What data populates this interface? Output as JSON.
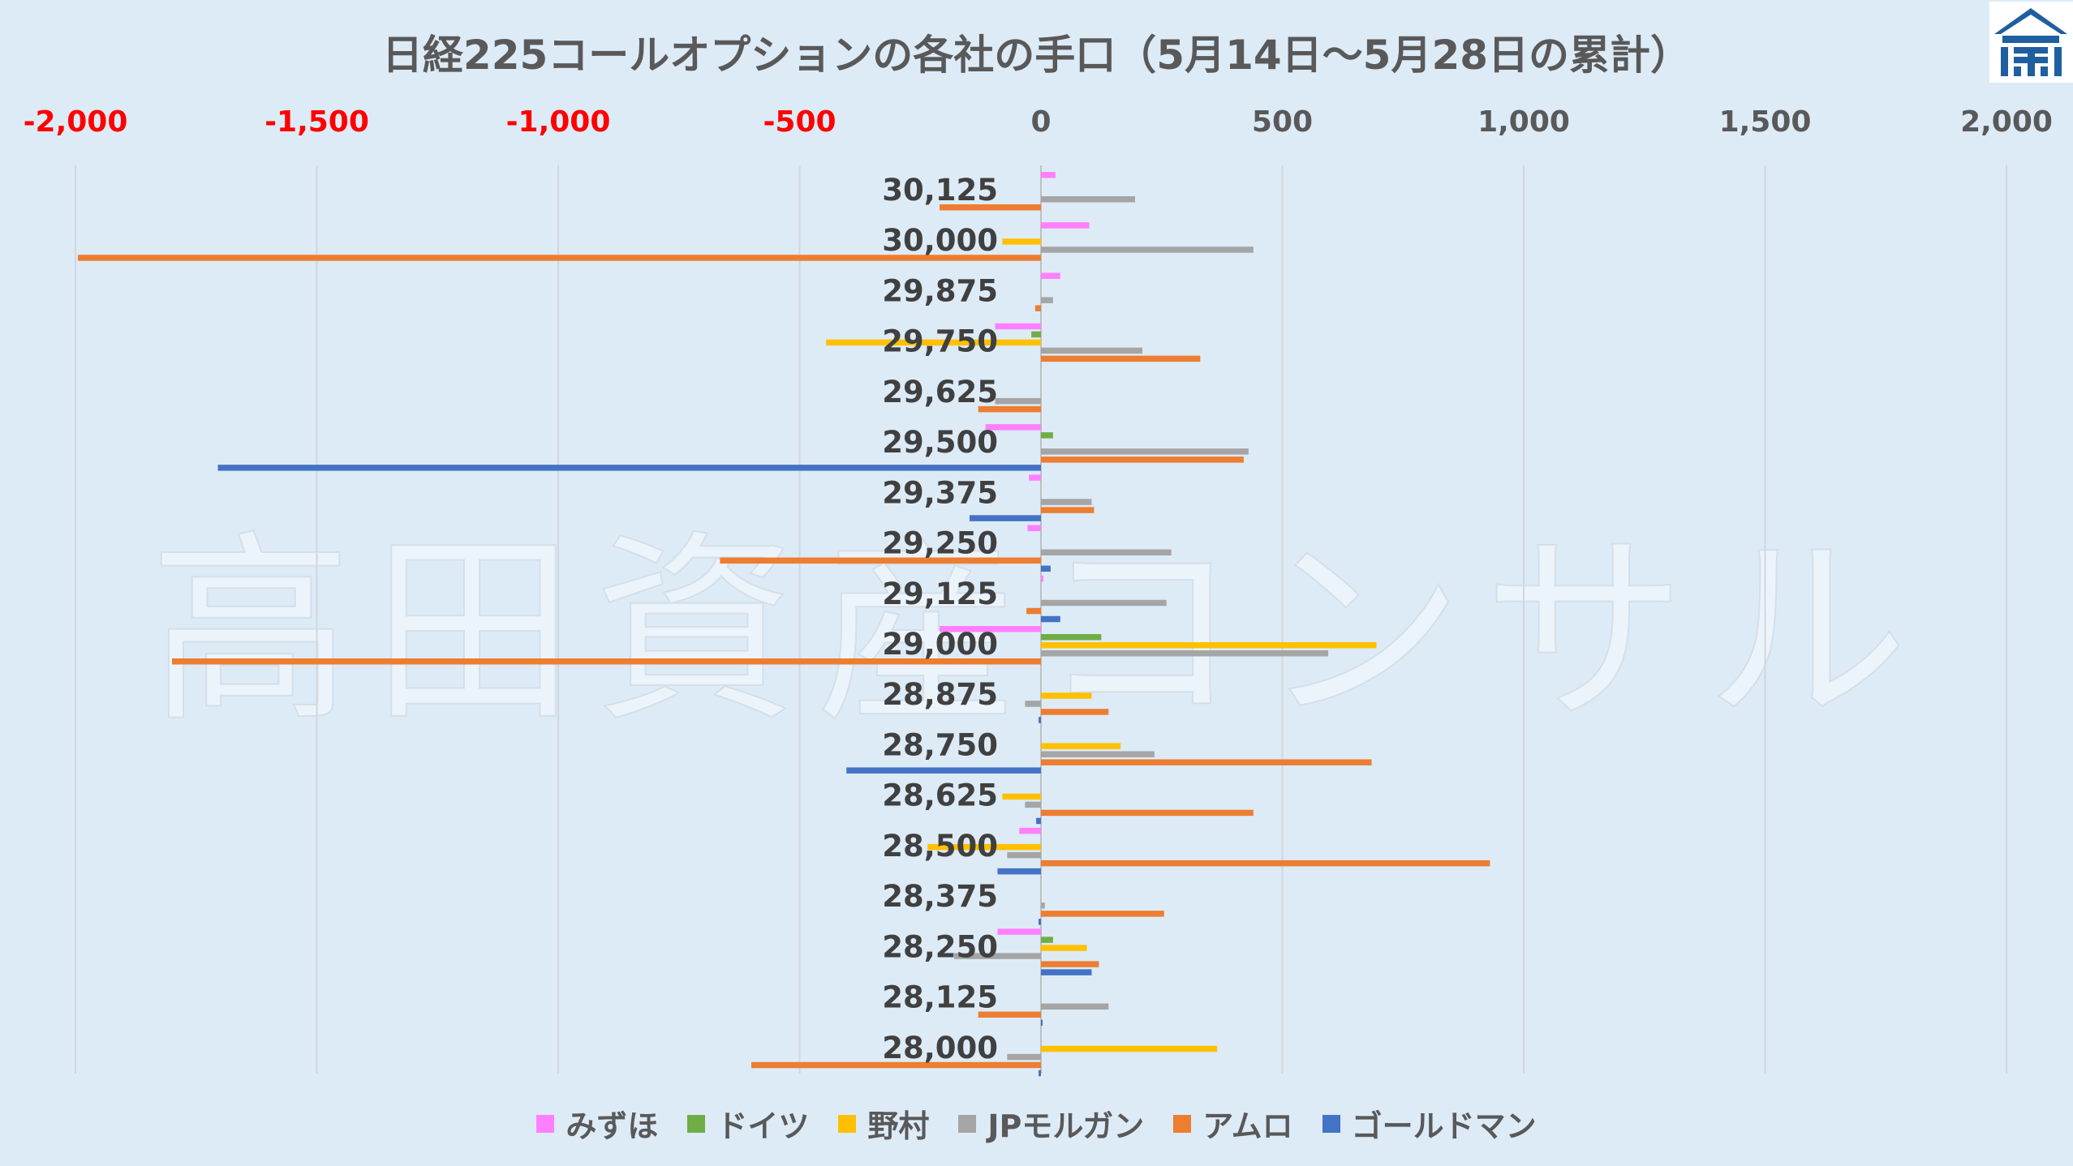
{
  "watermark": "高田資産コンサル",
  "chart_data": {
    "type": "bar",
    "orientation": "horizontal",
    "title": "日経225コールオプションの各社の手口（5月14日～5月28日の累計）",
    "xlim": [
      -2000,
      2000
    ],
    "x_ticks": [
      "-2,000",
      "-1,500",
      "-1,000",
      "-500",
      "0",
      "500",
      "1,000",
      "1,500",
      "2,000"
    ],
    "x_tick_values": [
      -2000,
      -1500,
      -1000,
      -500,
      0,
      500,
      1000,
      1500,
      2000
    ],
    "negative_tick_color": "#FF0000",
    "positive_tick_color": "#595959",
    "grid": true,
    "legend_position": "bottom",
    "categories": [
      "30,125",
      "30,000",
      "29,875",
      "29,750",
      "29,625",
      "29,500",
      "29,375",
      "29,250",
      "29,125",
      "29,000",
      "28,875",
      "28,750",
      "28,625",
      "28,500",
      "28,375",
      "28,250",
      "28,125",
      "28,000"
    ],
    "series": [
      {
        "name": "みずほ",
        "color": "#FF7FFF",
        "values": [
          30,
          100,
          40,
          -95,
          0,
          -115,
          -25,
          -28,
          5,
          -210,
          0,
          0,
          0,
          -45,
          0,
          -90,
          0,
          0
        ]
      },
      {
        "name": "ドイツ",
        "color": "#70AD47",
        "values": [
          0,
          0,
          0,
          -20,
          0,
          25,
          0,
          0,
          0,
          125,
          0,
          0,
          0,
          0,
          0,
          25,
          0,
          0
        ]
      },
      {
        "name": "野村",
        "color": "#FFC000",
        "values": [
          0,
          -80,
          0,
          -445,
          0,
          0,
          0,
          0,
          0,
          695,
          105,
          165,
          -80,
          -235,
          0,
          95,
          0,
          365
        ]
      },
      {
        "name": "JPモルガン",
        "color": "#A5A5A5",
        "values": [
          195,
          440,
          25,
          210,
          -95,
          430,
          105,
          270,
          260,
          595,
          -33,
          235,
          -33,
          -70,
          8,
          -180,
          140,
          -70
        ]
      },
      {
        "name": "アムロ",
        "color": "#ED7D31",
        "values": [
          -210,
          -1995,
          -12,
          330,
          -130,
          420,
          110,
          -665,
          -30,
          -1800,
          140,
          685,
          440,
          930,
          255,
          120,
          -130,
          -600
        ]
      },
      {
        "name": "ゴールドマン",
        "color": "#4472C4",
        "values": [
          0,
          0,
          0,
          0,
          0,
          -1705,
          -148,
          20,
          40,
          0,
          -5,
          -403,
          -10,
          -90,
          -5,
          105,
          3,
          -5
        ]
      }
    ]
  }
}
